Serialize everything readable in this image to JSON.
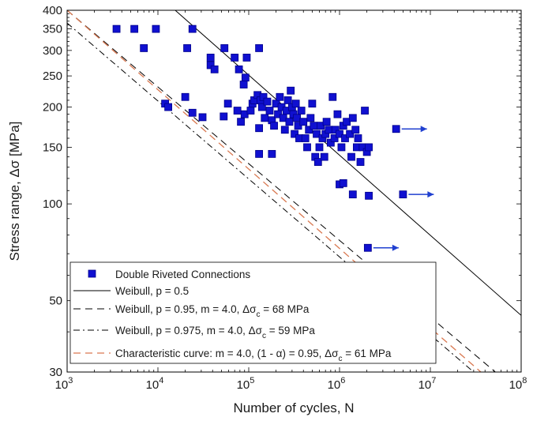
{
  "chart_data": {
    "type": "scatter",
    "xlabel": "Number of cycles, N",
    "ylabel": "Stress range, Δσ [MPa]",
    "xscale": "log",
    "yscale": "log",
    "xlim": [
      1000,
      100000000
    ],
    "ylim": [
      30,
      400
    ],
    "grid": false,
    "legend_position": "bottom-left",
    "x_ticks": [
      {
        "value": 1000,
        "base": "10",
        "exp": "3"
      },
      {
        "value": 10000,
        "base": "10",
        "exp": "4"
      },
      {
        "value": 100000,
        "base": "10",
        "exp": "5"
      },
      {
        "value": 1000000,
        "base": "10",
        "exp": "6"
      },
      {
        "value": 10000000,
        "base": "10",
        "exp": "7"
      },
      {
        "value": 100000000,
        "base": "10",
        "exp": "8"
      }
    ],
    "y_ticks": [
      {
        "value": 30,
        "label": "30"
      },
      {
        "value": 50,
        "label": "50"
      },
      {
        "value": 100,
        "label": "100"
      },
      {
        "value": 150,
        "label": "150"
      },
      {
        "value": 200,
        "label": "200"
      },
      {
        "value": 250,
        "label": "250"
      },
      {
        "value": 300,
        "label": "300"
      },
      {
        "value": 350,
        "label": "350"
      },
      {
        "value": 400,
        "label": "400"
      }
    ],
    "colors": {
      "points": "#1010d0",
      "point_edge": "#00008b",
      "lines": "#000000",
      "characteristic": "#d97850",
      "arrows": "#2040d0"
    },
    "series": [
      {
        "name": "Double Riveted Connections",
        "marker": "square",
        "points": [
          [
            3500,
            350
          ],
          [
            5500,
            350
          ],
          [
            9500,
            350
          ],
          [
            24000,
            350
          ],
          [
            7000,
            305
          ],
          [
            21000,
            305
          ],
          [
            54000,
            305
          ],
          [
            130000,
            305
          ],
          [
            38000,
            285
          ],
          [
            70000,
            285
          ],
          [
            95000,
            285
          ],
          [
            38000,
            270
          ],
          [
            42000,
            262
          ],
          [
            78000,
            262
          ],
          [
            92000,
            247
          ],
          [
            88000,
            235
          ],
          [
            12000,
            205
          ],
          [
            13000,
            200
          ],
          [
            20000,
            215
          ],
          [
            24000,
            192
          ],
          [
            31000,
            186
          ],
          [
            53000,
            187
          ],
          [
            59000,
            205
          ],
          [
            75000,
            195
          ],
          [
            82000,
            180
          ],
          [
            90000,
            190
          ],
          [
            105000,
            195
          ],
          [
            110000,
            205
          ],
          [
            115000,
            210
          ],
          [
            125000,
            218
          ],
          [
            135000,
            210
          ],
          [
            140000,
            200
          ],
          [
            145000,
            215
          ],
          [
            150000,
            185
          ],
          [
            160000,
            208
          ],
          [
            170000,
            195
          ],
          [
            180000,
            182
          ],
          [
            190000,
            175
          ],
          [
            200000,
            205
          ],
          [
            210000,
            190
          ],
          [
            220000,
            215
          ],
          [
            230000,
            200
          ],
          [
            240000,
            185
          ],
          [
            250000,
            170
          ],
          [
            260000,
            195
          ],
          [
            270000,
            210
          ],
          [
            280000,
            180
          ],
          [
            290000,
            225
          ],
          [
            300000,
            200
          ],
          [
            310000,
            190
          ],
          [
            320000,
            165
          ],
          [
            330000,
            205
          ],
          [
            340000,
            185
          ],
          [
            350000,
            175
          ],
          [
            360000,
            160
          ],
          [
            380000,
            195
          ],
          [
            400000,
            180
          ],
          [
            420000,
            160
          ],
          [
            440000,
            150
          ],
          [
            460000,
            170
          ],
          [
            480000,
            185
          ],
          [
            500000,
            205
          ],
          [
            520000,
            175
          ],
          [
            540000,
            140
          ],
          [
            560000,
            165
          ],
          [
            580000,
            135
          ],
          [
            600000,
            150
          ],
          [
            620000,
            175
          ],
          [
            650000,
            160
          ],
          [
            680000,
            140
          ],
          [
            700000,
            165
          ],
          [
            720000,
            180
          ],
          [
            760000,
            170
          ],
          [
            800000,
            155
          ],
          [
            840000,
            215
          ],
          [
            880000,
            160
          ],
          [
            900000,
            170
          ],
          [
            950000,
            190
          ],
          [
            1000000,
            165
          ],
          [
            1050000,
            150
          ],
          [
            1100000,
            175
          ],
          [
            1150000,
            160
          ],
          [
            1200000,
            180
          ],
          [
            1300000,
            165
          ],
          [
            1350000,
            140
          ],
          [
            1400000,
            185
          ],
          [
            1500000,
            170
          ],
          [
            1550000,
            150
          ],
          [
            1600000,
            160
          ],
          [
            1700000,
            135
          ],
          [
            1800000,
            150
          ],
          [
            1900000,
            195
          ],
          [
            2000000,
            145
          ],
          [
            2100000,
            150
          ],
          [
            130000,
            143
          ],
          [
            180000,
            143
          ],
          [
            130000,
            172
          ],
          [
            1000000,
            115
          ],
          [
            1100000,
            116
          ],
          [
            1400000,
            107
          ],
          [
            2100000,
            106
          ],
          [
            4200000,
            171
          ],
          [
            5000000,
            107
          ],
          [
            2050000,
            73
          ]
        ]
      }
    ],
    "runouts": [
      {
        "x": 4200000,
        "y": 171
      },
      {
        "x": 5000000,
        "y": 107
      },
      {
        "x": 2050000,
        "y": 73
      }
    ],
    "lines": [
      {
        "legend": "Weibull, p = 0.5",
        "style": "solid",
        "points": [
          [
            15500,
            400
          ],
          [
            100000000,
            45
          ]
        ]
      },
      {
        "legend": "Weibull, p = 0.95, m = 4.0, Δσ",
        "legend_sub": "c",
        "legend_tail": " = 68 MPa",
        "style": "dashed",
        "points": [
          [
            1000,
            400
          ],
          [
            52000000,
            30
          ]
        ]
      },
      {
        "legend": "Weibull, p = 0.975, m = 4.0, Δσ",
        "legend_sub": "c",
        "legend_tail": " = 59 MPa",
        "style": "dashdot",
        "points": [
          [
            1000,
            365
          ],
          [
            30000000,
            30
          ]
        ]
      },
      {
        "legend": "Characteristic curve: m = 4.0, (1 - α) = 0.95, Δσ",
        "legend_sub": "c",
        "legend_tail": " = 61 MPa",
        "style": "dashed-orange",
        "points": [
          [
            1000,
            400
          ],
          [
            36000000,
            30
          ]
        ]
      }
    ]
  }
}
